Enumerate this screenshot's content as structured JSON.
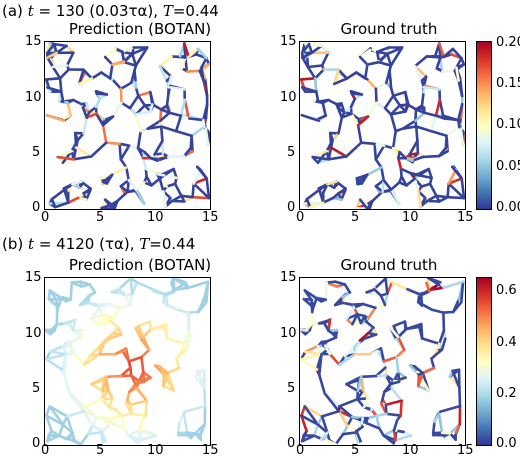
{
  "figure": {
    "panel_a": {
      "label_prefix": "(a)",
      "label_rest": "= 130 (0.03τα),",
      "label_T": "=0.44",
      "var_t": "t",
      "var_T": "T",
      "left_title": "Prediction (BOTAN)",
      "right_title": "Ground truth",
      "x_ticks": [
        "0",
        "5",
        "10",
        "15"
      ],
      "y_ticks": [
        "0",
        "5",
        "10",
        "15"
      ],
      "colorbar_ticks": [
        "0.00",
        "0.05",
        "0.10",
        "0.15",
        "0.20"
      ],
      "colorbar_range": [
        0.0,
        0.2
      ]
    },
    "panel_b": {
      "label_prefix": "(b)",
      "label_rest": "= 4120 (τα),",
      "label_T": "=0.44",
      "var_t": "t",
      "var_T": "T",
      "left_title": "Prediction (BOTAN)",
      "right_title": "Ground truth",
      "x_ticks": [
        "0",
        "5",
        "10",
        "15"
      ],
      "y_ticks": [
        "0",
        "5",
        "10",
        "15"
      ],
      "colorbar_ticks": [
        "0.0",
        "0.2",
        "0.4",
        "0.6"
      ],
      "colorbar_range": [
        0.0,
        0.65
      ]
    },
    "colormap": [
      "#313695",
      "#4575b4",
      "#74add1",
      "#abd9e9",
      "#e0f3f8",
      "#ffffbf",
      "#fee090",
      "#fdae61",
      "#f46d43",
      "#d73027",
      "#a50026"
    ]
  }
}
